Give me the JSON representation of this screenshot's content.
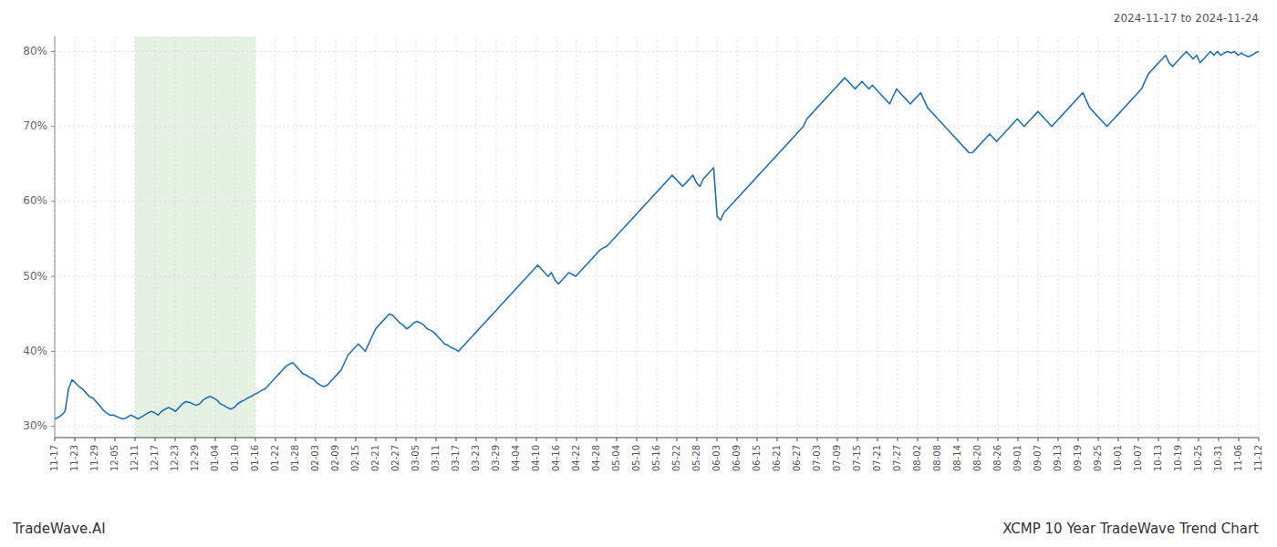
{
  "chart_data": {
    "type": "line",
    "title": "XCMP 10 Year TradeWave Trend Chart",
    "subtitle": "2024-11-17 to 2024-11-24",
    "annotations": [
      "TradeWave.AI"
    ],
    "color": "#2171b5",
    "grid": true,
    "xlim": [
      0,
      60
    ],
    "xticks": [
      {
        "value": 0,
        "label": "11-17"
      },
      {
        "value": 1,
        "label": "11-23"
      },
      {
        "value": 2,
        "label": "11-29"
      },
      {
        "value": 3,
        "label": "12-05"
      },
      {
        "value": 4,
        "label": "12-11"
      },
      {
        "value": 5,
        "label": "12-17"
      },
      {
        "value": 6,
        "label": "12-23"
      },
      {
        "value": 7,
        "label": "12-29"
      },
      {
        "value": 8,
        "label": "01-04"
      },
      {
        "value": 9,
        "label": "01-10"
      },
      {
        "value": 10,
        "label": "01-16"
      },
      {
        "value": 11,
        "label": "01-22"
      },
      {
        "value": 12,
        "label": "01-28"
      },
      {
        "value": 13,
        "label": "02-03"
      },
      {
        "value": 14,
        "label": "02-09"
      },
      {
        "value": 15,
        "label": "02-15"
      },
      {
        "value": 16,
        "label": "02-21"
      },
      {
        "value": 17,
        "label": "02-27"
      },
      {
        "value": 18,
        "label": "03-05"
      },
      {
        "value": 19,
        "label": "03-11"
      },
      {
        "value": 20,
        "label": "03-17"
      },
      {
        "value": 21,
        "label": "03-23"
      },
      {
        "value": 22,
        "label": "03-29"
      },
      {
        "value": 23,
        "label": "04-04"
      },
      {
        "value": 24,
        "label": "04-10"
      },
      {
        "value": 25,
        "label": "04-16"
      },
      {
        "value": 26,
        "label": "04-22"
      },
      {
        "value": 27,
        "label": "04-28"
      },
      {
        "value": 28,
        "label": "05-04"
      },
      {
        "value": 29,
        "label": "05-10"
      },
      {
        "value": 30,
        "label": "05-16"
      },
      {
        "value": 31,
        "label": "05-22"
      },
      {
        "value": 32,
        "label": "05-28"
      },
      {
        "value": 33,
        "label": "06-03"
      },
      {
        "value": 34,
        "label": "06-09"
      },
      {
        "value": 35,
        "label": "06-15"
      },
      {
        "value": 36,
        "label": "06-21"
      },
      {
        "value": 37,
        "label": "06-27"
      },
      {
        "value": 38,
        "label": "07-03"
      },
      {
        "value": 39,
        "label": "07-09"
      },
      {
        "value": 40,
        "label": "07-15"
      },
      {
        "value": 41,
        "label": "07-21"
      },
      {
        "value": 42,
        "label": "07-27"
      },
      {
        "value": 43,
        "label": "08-02"
      },
      {
        "value": 44,
        "label": "08-08"
      },
      {
        "value": 45,
        "label": "08-14"
      },
      {
        "value": 46,
        "label": "08-20"
      },
      {
        "value": 47,
        "label": "08-26"
      },
      {
        "value": 48,
        "label": "09-01"
      },
      {
        "value": 49,
        "label": "09-07"
      },
      {
        "value": 50,
        "label": "09-13"
      },
      {
        "value": 51,
        "label": "09-19"
      },
      {
        "value": 52,
        "label": "09-25"
      },
      {
        "value": 53,
        "label": "10-01"
      },
      {
        "value": 54,
        "label": "10-07"
      },
      {
        "value": 55,
        "label": "10-13"
      },
      {
        "value": 56,
        "label": "10-19"
      },
      {
        "value": 57,
        "label": "10-25"
      },
      {
        "value": 58,
        "label": "10-31"
      },
      {
        "value": 59,
        "label": "11-06"
      },
      {
        "value": 60,
        "label": "11-12"
      }
    ],
    "ylim": [
      28.5,
      82
    ],
    "yticks": [
      {
        "value": 30,
        "label": "30%"
      },
      {
        "value": 40,
        "label": "40%"
      },
      {
        "value": 50,
        "label": "50%"
      },
      {
        "value": 60,
        "label": "60%"
      },
      {
        "value": 70,
        "label": "70%"
      },
      {
        "value": 80,
        "label": "80%"
      }
    ],
    "span": [
      4,
      10
    ],
    "span_color": "#d4e8d0",
    "values": [
      31.0,
      31.2,
      31.5,
      32.0,
      35.0,
      36.2,
      35.8,
      35.3,
      35.0,
      34.5,
      34.0,
      33.8,
      33.3,
      32.8,
      32.2,
      31.8,
      31.5,
      31.5,
      31.3,
      31.1,
      31.0,
      31.2,
      31.5,
      31.3,
      31.0,
      31.2,
      31.5,
      31.8,
      32.0,
      31.8,
      31.5,
      32.0,
      32.3,
      32.5,
      32.3,
      32.0,
      32.5,
      33.0,
      33.3,
      33.2,
      33.0,
      32.8,
      33.0,
      33.5,
      33.8,
      34.0,
      33.8,
      33.5,
      33.0,
      32.8,
      32.5,
      32.3,
      32.5,
      33.0,
      33.3,
      33.5,
      33.8,
      34.0,
      34.3,
      34.5,
      34.8,
      35.0,
      35.5,
      36.0,
      36.5,
      37.0,
      37.5,
      38.0,
      38.3,
      38.5,
      38.0,
      37.5,
      37.0,
      36.8,
      36.5,
      36.3,
      35.8,
      35.5,
      35.3,
      35.5,
      36.0,
      36.5,
      37.0,
      37.5,
      38.5,
      39.5,
      40.0,
      40.5,
      41.0,
      40.5,
      40.0,
      41.0,
      42.0,
      43.0,
      43.5,
      44.0,
      44.5,
      45.0,
      44.8,
      44.3,
      43.8,
      43.5,
      43.0,
      43.3,
      43.8,
      44.0,
      43.8,
      43.5,
      43.0,
      42.8,
      42.5,
      42.0,
      41.5,
      41.0,
      40.8,
      40.5,
      40.3,
      40.0,
      40.5,
      41.0,
      41.5,
      42.0,
      42.5,
      43.0,
      43.5,
      44.0,
      44.5,
      45.0,
      45.5,
      46.0,
      46.5,
      47.0,
      47.5,
      48.0,
      48.5,
      49.0,
      49.5,
      50.0,
      50.5,
      51.0,
      51.5,
      51.0,
      50.5,
      50.0,
      50.5,
      49.5,
      49.0,
      49.5,
      50.0,
      50.5,
      50.3,
      50.0,
      50.5,
      51.0,
      51.5,
      52.0,
      52.5,
      53.0,
      53.5,
      53.8,
      54.0,
      54.5,
      55.0,
      55.5,
      56.0,
      56.5,
      57.0,
      57.5,
      58.0,
      58.5,
      59.0,
      59.5,
      60.0,
      60.5,
      61.0,
      61.5,
      62.0,
      62.5,
      63.0,
      63.5,
      63.0,
      62.5,
      62.0,
      62.5,
      63.0,
      63.5,
      62.5,
      62.0,
      63.0,
      63.5,
      64.0,
      64.5,
      58.0,
      57.5,
      58.5,
      59.0,
      59.5,
      60.0,
      60.5,
      61.0,
      61.5,
      62.0,
      62.5,
      63.0,
      63.5,
      64.0,
      64.5,
      65.0,
      65.5,
      66.0,
      66.5,
      67.0,
      67.5,
      68.0,
      68.5,
      69.0,
      69.5,
      70.0,
      71.0,
      71.5,
      72.0,
      72.5,
      73.0,
      73.5,
      74.0,
      74.5,
      75.0,
      75.5,
      76.0,
      76.5,
      76.0,
      75.5,
      75.0,
      75.5,
      76.0,
      75.5,
      75.0,
      75.5,
      75.0,
      74.5,
      74.0,
      73.5,
      73.0,
      74.0,
      75.0,
      74.5,
      74.0,
      73.5,
      73.0,
      73.5,
      74.0,
      74.5,
      73.5,
      72.5,
      72.0,
      71.5,
      71.0,
      70.5,
      70.0,
      69.5,
      69.0,
      68.5,
      68.0,
      67.5,
      67.0,
      66.5,
      66.5,
      67.0,
      67.5,
      68.0,
      68.5,
      69.0,
      68.5,
      68.0,
      68.5,
      69.0,
      69.5,
      70.0,
      70.5,
      71.0,
      70.5,
      70.0,
      70.5,
      71.0,
      71.5,
      72.0,
      71.5,
      71.0,
      70.5,
      70.0,
      70.5,
      71.0,
      71.5,
      72.0,
      72.5,
      73.0,
      73.5,
      74.0,
      74.5,
      73.5,
      72.5,
      72.0,
      71.5,
      71.0,
      70.5,
      70.0,
      70.5,
      71.0,
      71.5,
      72.0,
      72.5,
      73.0,
      73.5,
      74.0,
      74.5,
      75.0,
      76.0,
      77.0,
      77.5,
      78.0,
      78.5,
      79.0,
      79.5,
      78.5,
      78.0,
      78.5,
      79.0,
      79.5,
      80.0,
      79.5,
      79.0,
      79.5,
      78.5,
      79.0,
      79.5,
      80.0,
      79.5,
      80.0,
      79.5,
      79.8,
      80.0,
      79.8,
      80.0,
      79.5,
      79.8,
      79.5,
      79.3,
      79.5,
      79.8,
      80.0
    ]
  }
}
